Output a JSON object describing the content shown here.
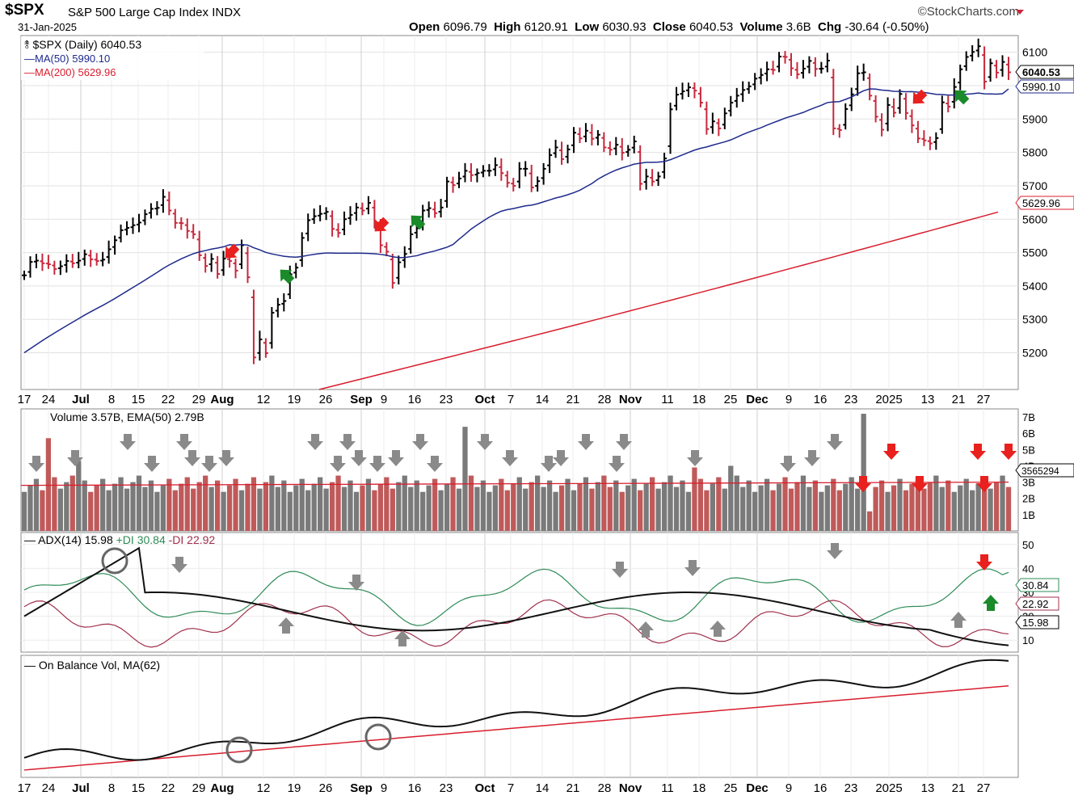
{
  "header": {
    "symbol": "$SPX",
    "name": "S&P 500 Large Cap Index",
    "exchange": "INDX",
    "date": "31-Jan-2025",
    "brand": "©StockCharts.com",
    "open_label": "Open",
    "open": "6096.79",
    "high_label": "High",
    "high": "6120.91",
    "low_label": "Low",
    "low": "6030.93",
    "close_label": "Close",
    "close": "6040.53",
    "volume_label": "Volume",
    "volume": "3.6B",
    "chg_label": "Chg",
    "chg": "-30.64 (-0.50%)"
  },
  "legend": {
    "price": "$SPX (Daily) 6040.53",
    "ma50": "MA(50) 5990.10",
    "ma200": "MA(200) 5629.96",
    "volume": "Volume 3.57B, EMA(50) 2.79B",
    "adx": "ADX(14) 15.98",
    "plus_di": "+DI 30.84",
    "minus_di": "-DI 22.92",
    "obv": "On Balance Vol, MA(62)"
  },
  "badges": {
    "price": "6040.53",
    "ma50": "5990.10",
    "ma200": "5629.96",
    "volume": "3565294",
    "plus_di": "30.84",
    "minus_di": "22.92",
    "adx": "15.98"
  },
  "colors": {
    "up": "#000000",
    "down": "#c8283c",
    "ma50": "#1e2a8c",
    "ma200": "#d81e2e",
    "vol_gray": "#7a7a7a",
    "vol_red": "#c05a5a",
    "plus_di": "#2e8b57",
    "minus_di": "#a0304c",
    "arrow_red": "#e8201e",
    "arrow_green": "#1a8a2a",
    "arrow_gray": "#8a8a8a"
  },
  "chart_data": [
    {
      "type": "ohlc",
      "title": "$SPX (Daily)",
      "x_tick_labels": [
        "17",
        "24",
        "Jul",
        "8",
        "15",
        "22",
        "29",
        "Aug",
        "12",
        "19",
        "26",
        "Sep",
        "9",
        "16",
        "23",
        "Oct",
        "7",
        "14",
        "21",
        "28",
        "Nov",
        "11",
        "18",
        "25",
        "Dec",
        "9",
        "16",
        "23",
        "2025",
        "13",
        "21",
        "27"
      ],
      "y_ticks": [
        5200,
        5300,
        5400,
        5500,
        5600,
        5700,
        5800,
        5900,
        6000,
        6100
      ],
      "ylim": [
        5090,
        6150
      ],
      "close": [
        5432,
        5472,
        5476,
        5468,
        5465,
        5451,
        5459,
        5475,
        5468,
        5476,
        5495,
        5480,
        5475,
        5479,
        5510,
        5537,
        5567,
        5574,
        5582,
        5590,
        5615,
        5631,
        5634,
        5667,
        5626,
        5589,
        5588,
        5565,
        5555,
        5492,
        5460,
        5481,
        5436,
        5482,
        5475,
        5446,
        5522,
        5426,
        5186,
        5240,
        5199,
        5320,
        5344,
        5355,
        5435,
        5455,
        5544,
        5597,
        5609,
        5616,
        5622,
        5571,
        5559,
        5600,
        5613,
        5635,
        5626,
        5649,
        5592,
        5522,
        5503,
        5409,
        5471,
        5496,
        5555,
        5573,
        5626,
        5633,
        5618,
        5635,
        5713,
        5702,
        5722,
        5745,
        5732,
        5738,
        5745,
        5745,
        5762,
        5738,
        5709,
        5700,
        5751,
        5751,
        5695,
        5714,
        5751,
        5792,
        5815,
        5780,
        5809,
        5859,
        5842,
        5865,
        5841,
        5853,
        5815,
        5808,
        5823,
        5799,
        5808,
        5833,
        5706,
        5728,
        5713,
        5728,
        5782,
        5929,
        5973,
        5983,
        5995,
        5985,
        5949,
        5870,
        5893,
        5872,
        5917,
        5949,
        5970,
        5987,
        5998,
        6021,
        6032,
        6049,
        6047,
        6087,
        6086,
        6052,
        6034,
        6051,
        6074,
        6050,
        6051,
        6075,
        5872,
        5867,
        5930,
        5974,
        6037,
        6040,
        5970,
        5907,
        5868,
        5942,
        5919,
        5975,
        5918,
        5881,
        5842,
        5836,
        5827,
        5843,
        5950,
        5937,
        5996,
        6049,
        6086,
        6101,
        6118,
        6012,
        6067,
        6039,
        6071,
        6040
      ],
      "ma50_visible": [
        5200,
        5450,
        5470,
        5520,
        5600,
        5700,
        5730,
        5830,
        5900,
        5990
      ],
      "ma200_visible": [
        5090,
        5300,
        5420,
        5520,
        5600,
        5629.96
      ]
    },
    {
      "type": "bar",
      "title": "Volume",
      "y_tick_labels": [
        "1B",
        "2B",
        "3B",
        "4B",
        "5B",
        "6B",
        "7B"
      ],
      "ylim": [
        0,
        7.5
      ],
      "ema50_level": 2.8
    },
    {
      "type": "line",
      "title": "ADX(14)",
      "y_ticks": [
        10,
        20,
        30,
        40,
        50
      ],
      "ylim": [
        5,
        55
      ],
      "adx_last": 15.98,
      "plus_di_last": 30.84,
      "minus_di_last": 22.92
    },
    {
      "type": "line",
      "title": "On Balance Vol, MA(62)",
      "x_tick_labels": [
        "17",
        "24",
        "Jul",
        "8",
        "15",
        "22",
        "29",
        "Aug",
        "12",
        "19",
        "26",
        "Sep",
        "9",
        "16",
        "23",
        "Oct",
        "7",
        "14",
        "21",
        "28",
        "Nov",
        "11",
        "18",
        "25",
        "Dec",
        "9",
        "16",
        "23",
        "2025",
        "13",
        "21",
        "27"
      ]
    }
  ]
}
